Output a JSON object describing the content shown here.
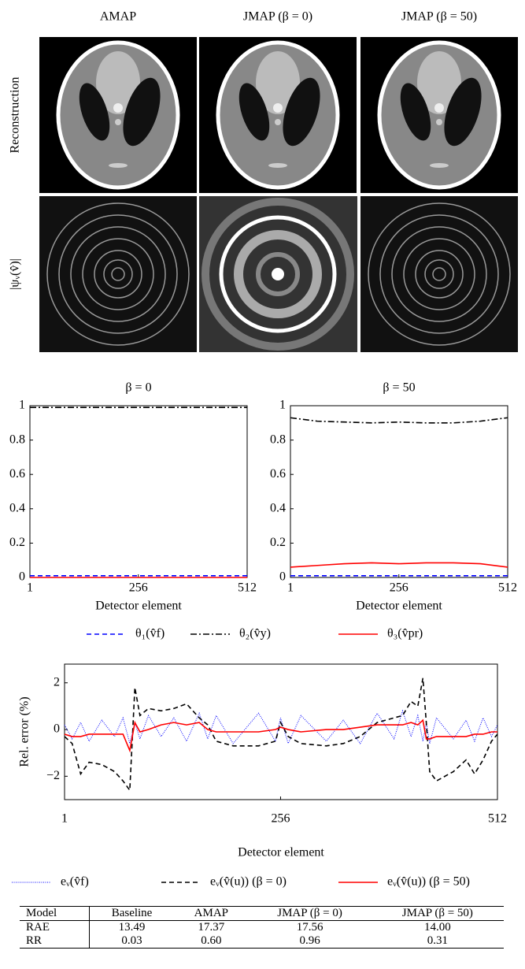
{
  "images": {
    "columns": [
      "AMAP",
      "JMAP (β = 0)",
      "JMAP (β = 50)"
    ],
    "rows": [
      "Reconstruction",
      "|ψᵥ(v̂)|"
    ]
  },
  "chart_data": [
    {
      "type": "line",
      "title": "β = 0",
      "xlabel": "Detector element",
      "x": [
        1,
        64,
        128,
        192,
        256,
        320,
        384,
        448,
        512
      ],
      "xlim": [
        1,
        512
      ],
      "xticks": [
        1,
        256,
        512
      ],
      "ylim": [
        0,
        1
      ],
      "yticks": [
        0,
        0.2,
        0.4,
        0.6,
        0.8,
        1
      ],
      "series": [
        {
          "name": "θ₁(v̂f)",
          "color": "#0000ff",
          "style": "dashed",
          "values": [
            0.01,
            0.01,
            0.01,
            0.01,
            0.01,
            0.01,
            0.01,
            0.01,
            0.01
          ]
        },
        {
          "name": "θ₂(v̂y)",
          "color": "#000000",
          "style": "dashdot",
          "values": [
            0.99,
            0.99,
            0.99,
            0.99,
            0.99,
            0.99,
            0.99,
            0.99,
            0.99
          ]
        },
        {
          "name": "θ₃(v̂pr)",
          "color": "#ff0000",
          "style": "solid",
          "values": [
            0,
            0,
            0,
            0,
            0,
            0,
            0,
            0,
            0
          ]
        }
      ]
    },
    {
      "type": "line",
      "title": "β = 50",
      "xlabel": "Detector element",
      "x": [
        1,
        64,
        128,
        192,
        256,
        320,
        384,
        448,
        512
      ],
      "xlim": [
        1,
        512
      ],
      "xticks": [
        1,
        256,
        512
      ],
      "ylim": [
        0,
        1
      ],
      "yticks": [
        0,
        0.2,
        0.4,
        0.6,
        0.8,
        1
      ],
      "series": [
        {
          "color": "#0000ff",
          "style": "dashed",
          "values": [
            0.01,
            0.01,
            0.01,
            0.01,
            0.01,
            0.01,
            0.01,
            0.01,
            0.01
          ]
        },
        {
          "color": "#000000",
          "style": "dashdot",
          "values": [
            0.93,
            0.91,
            0.905,
            0.9,
            0.905,
            0.9,
            0.9,
            0.91,
            0.93
          ]
        },
        {
          "color": "#ff0000",
          "style": "solid",
          "values": [
            0.06,
            0.07,
            0.08,
            0.085,
            0.08,
            0.085,
            0.085,
            0.08,
            0.06
          ]
        }
      ]
    },
    {
      "type": "line",
      "ylabel": "Rel. error (%)",
      "xlabel": "Detector element",
      "x": [
        1,
        10,
        20,
        30,
        45,
        60,
        70,
        78,
        84,
        90,
        100,
        115,
        130,
        145,
        160,
        170,
        180,
        200,
        230,
        250,
        256,
        265,
        280,
        310,
        330,
        350,
        370,
        390,
        400,
        410,
        418,
        424,
        428,
        432,
        440,
        460,
        475,
        485,
        495,
        505,
        512
      ],
      "xlim": [
        1,
        512
      ],
      "xticks": [
        1,
        256,
        512
      ],
      "ylim": [
        -3,
        2.8
      ],
      "yticks": [
        {
          "value": -2,
          "label": "−2"
        },
        0,
        2
      ],
      "series": [
        {
          "name": "eᵥ(v̂f)",
          "color": "#0000ff",
          "style": "dotted",
          "values": [
            0.2,
            -0.4,
            0.3,
            -0.5,
            0.4,
            -0.3,
            0.5,
            -0.6,
            0.3,
            -0.4,
            0.6,
            -0.3,
            0.5,
            -0.5,
            0.7,
            -0.4,
            0.6,
            -0.6,
            0.7,
            -0.5,
            0.5,
            -0.6,
            0.6,
            -0.5,
            0.4,
            -0.6,
            0.7,
            -0.4,
            0.8,
            -0.3,
            0.6,
            -0.5,
            0.3,
            -0.6,
            0.5,
            -0.4,
            0.4,
            -0.5,
            0.5,
            -0.3,
            0.2
          ]
        },
        {
          "name": "eᵥ(v̂(u)) (β = 0)",
          "color": "#000000",
          "style": "dashed",
          "values": [
            -0.3,
            -0.6,
            -1.9,
            -1.4,
            -1.5,
            -1.8,
            -2.2,
            -2.6,
            1.8,
            0.6,
            0.9,
            0.8,
            0.9,
            1.1,
            0.5,
            0.2,
            -0.5,
            -0.7,
            -0.7,
            -0.5,
            0.3,
            -0.3,
            -0.6,
            -0.7,
            -0.6,
            -0.3,
            0.3,
            0.5,
            0.6,
            1.2,
            1.0,
            2.2,
            0.3,
            -1.8,
            -2.2,
            -1.8,
            -1.3,
            -1.9,
            -1.3,
            -0.5,
            -0.2
          ]
        },
        {
          "name": "eᵥ(v̂(u)) (β = 50)",
          "color": "#ff0000",
          "style": "solid",
          "values": [
            -0.2,
            -0.3,
            -0.3,
            -0.2,
            -0.2,
            -0.2,
            -0.2,
            -0.9,
            0.3,
            -0.1,
            0.0,
            0.2,
            0.3,
            0.2,
            0.3,
            0.0,
            -0.1,
            -0.1,
            -0.1,
            0.0,
            0.1,
            0.0,
            -0.1,
            0.0,
            0.0,
            0.1,
            0.2,
            0.2,
            0.2,
            0.3,
            0.2,
            0.4,
            -0.4,
            -0.4,
            -0.3,
            -0.3,
            -0.3,
            -0.2,
            -0.2,
            -0.1,
            -0.1
          ]
        }
      ]
    }
  ],
  "table": {
    "header": [
      "Model",
      "Baseline",
      "AMAP",
      "JMAP (β = 0)",
      "JMAP (β = 50)"
    ],
    "rows": [
      [
        "RAE",
        "13.49",
        "17.37",
        "17.56",
        "14.00"
      ],
      [
        "RR",
        "0.03",
        "0.60",
        "0.96",
        "0.31"
      ]
    ]
  }
}
